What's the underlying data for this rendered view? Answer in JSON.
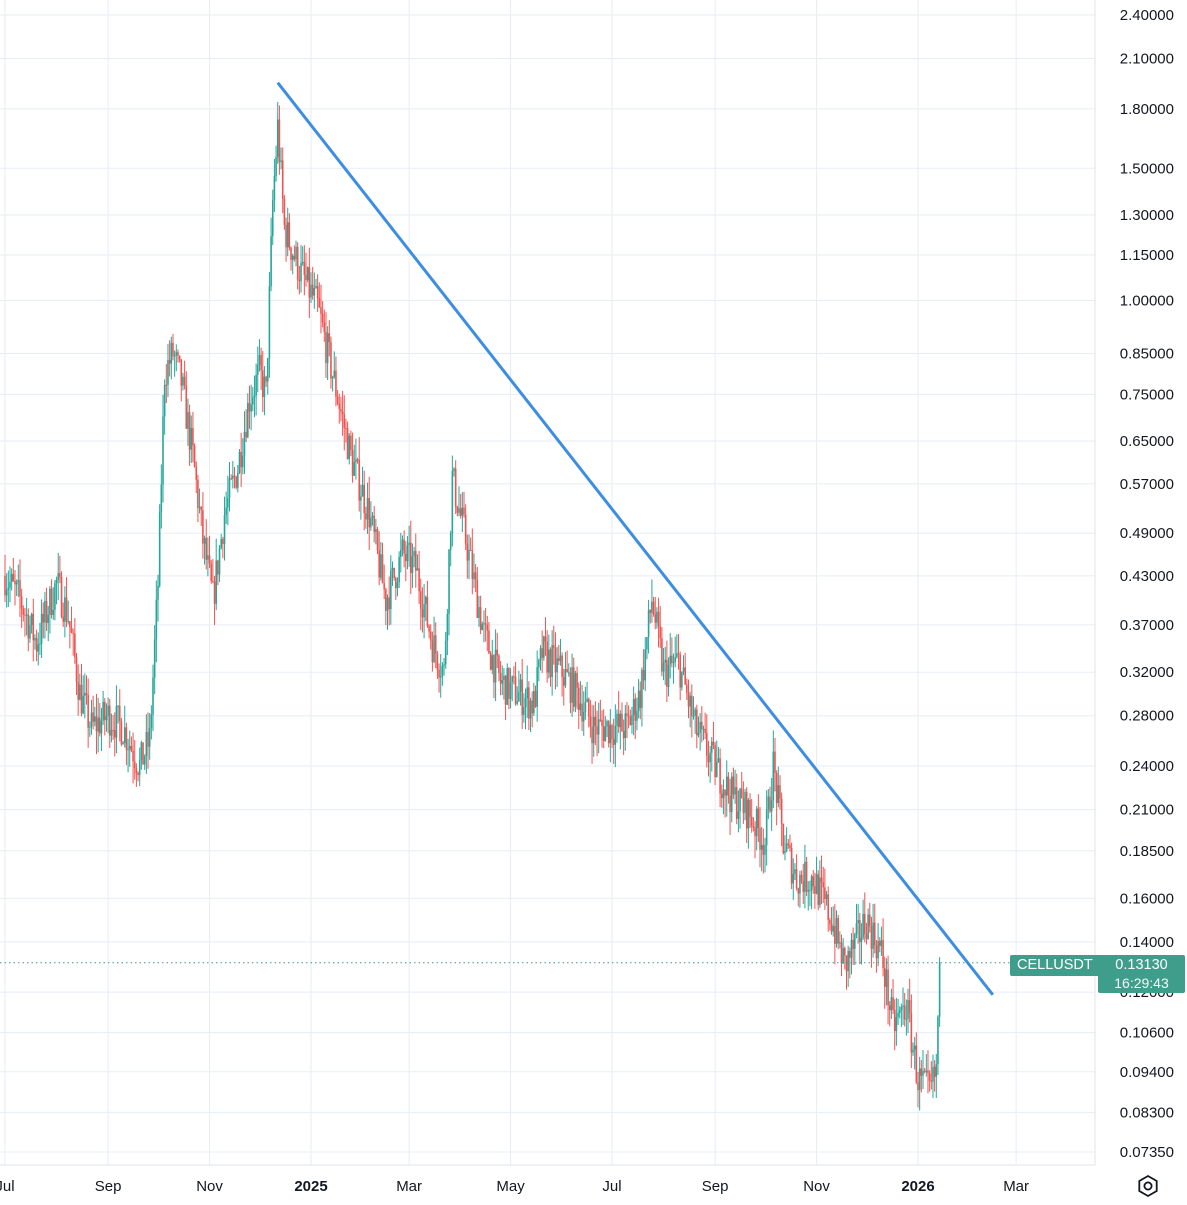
{
  "chart_data": {
    "type": "candlestick",
    "symbol": "CELLUSDT",
    "scale": "log",
    "y_ticks": [
      "2.40000",
      "2.10000",
      "1.80000",
      "1.50000",
      "1.30000",
      "1.15000",
      "1.00000",
      "0.85000",
      "0.75000",
      "0.65000",
      "0.57000",
      "0.49000",
      "0.43000",
      "0.37000",
      "0.32000",
      "0.28000",
      "0.24000",
      "0.21000",
      "0.18500",
      "0.16000",
      "0.14000",
      "0.12000",
      "0.10600",
      "0.09400",
      "0.08300",
      "0.07350"
    ],
    "x_ticks": [
      {
        "label": "Jul",
        "bold": false
      },
      {
        "label": "Sep",
        "bold": false
      },
      {
        "label": "Nov",
        "bold": false
      },
      {
        "label": "2025",
        "bold": true
      },
      {
        "label": "Mar",
        "bold": false
      },
      {
        "label": "May",
        "bold": false
      },
      {
        "label": "Jul",
        "bold": false
      },
      {
        "label": "Sep",
        "bold": false
      },
      {
        "label": "Nov",
        "bold": false
      },
      {
        "label": "2026",
        "bold": true
      },
      {
        "label": "Mar",
        "bold": false
      }
    ],
    "price_path": [
      [
        "2024-07-01",
        0.43
      ],
      [
        "2024-07-10",
        0.4
      ],
      [
        "2024-07-20",
        0.35
      ],
      [
        "2024-08-01",
        0.42
      ],
      [
        "2024-08-08",
        0.38
      ],
      [
        "2024-08-15",
        0.3
      ],
      [
        "2024-08-22",
        0.27
      ],
      [
        "2024-09-01",
        0.28
      ],
      [
        "2024-09-10",
        0.27
      ],
      [
        "2024-09-20",
        0.24
      ],
      [
        "2024-09-26",
        0.26
      ],
      [
        "2024-10-01",
        0.42
      ],
      [
        "2024-10-05",
        0.8
      ],
      [
        "2024-10-10",
        0.85
      ],
      [
        "2024-10-15",
        0.78
      ],
      [
        "2024-10-22",
        0.62
      ],
      [
        "2024-10-28",
        0.48
      ],
      [
        "2024-11-03",
        0.4
      ],
      [
        "2024-11-10",
        0.52
      ],
      [
        "2024-11-18",
        0.6
      ],
      [
        "2024-11-25",
        0.74
      ],
      [
        "2024-12-01",
        0.8
      ],
      [
        "2024-12-05",
        0.75
      ],
      [
        "2024-12-09",
        1.35
      ],
      [
        "2024-12-12",
        1.7
      ],
      [
        "2024-12-16",
        1.25
      ],
      [
        "2024-12-25",
        1.1
      ],
      [
        "2025-01-05",
        0.98
      ],
      [
        "2025-01-15",
        0.78
      ],
      [
        "2025-01-25",
        0.62
      ],
      [
        "2025-02-05",
        0.52
      ],
      [
        "2025-02-15",
        0.4
      ],
      [
        "2025-02-25",
        0.46
      ],
      [
        "2025-03-05",
        0.44
      ],
      [
        "2025-03-15",
        0.35
      ],
      [
        "2025-03-22",
        0.32
      ],
      [
        "2025-03-27",
        0.58
      ],
      [
        "2025-04-05",
        0.47
      ],
      [
        "2025-04-15",
        0.36
      ],
      [
        "2025-04-25",
        0.31
      ],
      [
        "2025-05-05",
        0.3
      ],
      [
        "2025-05-15",
        0.29
      ],
      [
        "2025-05-20",
        0.34
      ],
      [
        "2025-06-01",
        0.32
      ],
      [
        "2025-06-10",
        0.3
      ],
      [
        "2025-06-20",
        0.27
      ],
      [
        "2025-07-01",
        0.27
      ],
      [
        "2025-07-10",
        0.27
      ],
      [
        "2025-07-18",
        0.3
      ],
      [
        "2025-07-25",
        0.4
      ],
      [
        "2025-08-01",
        0.32
      ],
      [
        "2025-08-10",
        0.33
      ],
      [
        "2025-08-20",
        0.27
      ],
      [
        "2025-09-01",
        0.24
      ],
      [
        "2025-09-10",
        0.22
      ],
      [
        "2025-09-20",
        0.21
      ],
      [
        "2025-10-01",
        0.19
      ],
      [
        "2025-10-06",
        0.24
      ],
      [
        "2025-10-12",
        0.19
      ],
      [
        "2025-10-20",
        0.17
      ],
      [
        "2025-10-30",
        0.17
      ],
      [
        "2025-11-10",
        0.15
      ],
      [
        "2025-11-18",
        0.13
      ],
      [
        "2025-11-25",
        0.14
      ],
      [
        "2025-12-01",
        0.15
      ],
      [
        "2025-12-10",
        0.135
      ],
      [
        "2025-12-17",
        0.108
      ],
      [
        "2025-12-25",
        0.115
      ],
      [
        "2026-01-01",
        0.092
      ],
      [
        "2026-01-08",
        0.088
      ],
      [
        "2026-01-12",
        0.094
      ],
      [
        "2026-01-14",
        0.1313
      ]
    ],
    "trendline": {
      "start": [
        "2024-12-12",
        1.95
      ],
      "end": [
        "2026-02-15",
        0.119
      ]
    },
    "last_price": "0.13130",
    "countdown": "16:29:43",
    "colors": {
      "up": "#26a69a",
      "down": "#ef5350",
      "trend": "#3d8de0",
      "tag": "#3f9d8b"
    }
  },
  "ui": {
    "settings_icon": "gear-icon"
  }
}
